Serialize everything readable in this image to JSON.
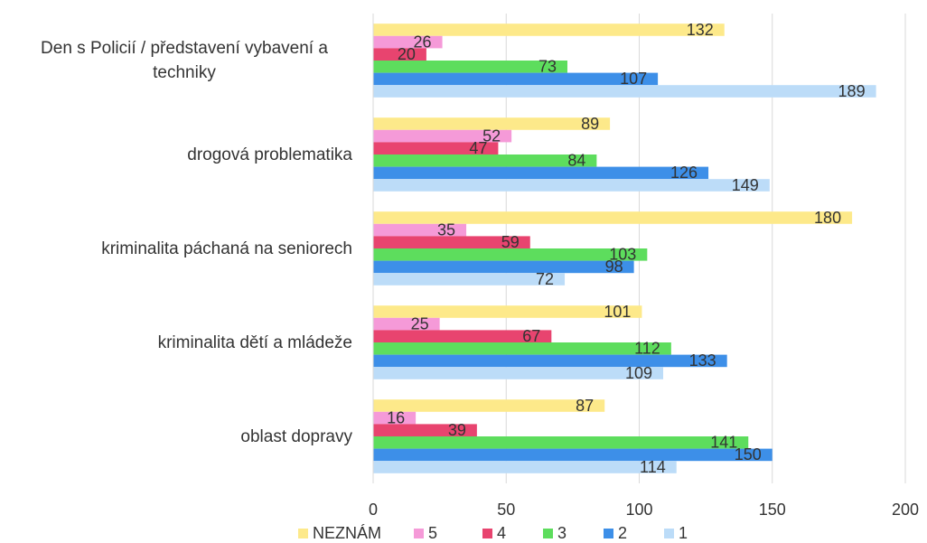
{
  "chart_data": {
    "type": "hbar",
    "categories": [
      "Den s Policií / představení vybavení a techniky",
      "drogová problematika",
      "kriminalita páchaná na seniorech",
      "kriminalita dětí a mládeže",
      "oblast dopravy"
    ],
    "series": [
      {
        "name": "NEZNÁM",
        "color": "#fde98a",
        "values": [
          132,
          89,
          180,
          101,
          87
        ]
      },
      {
        "name": "5",
        "color": "#f59ad8",
        "values": [
          26,
          52,
          35,
          25,
          16
        ]
      },
      {
        "name": "4",
        "color": "#e8446f",
        "values": [
          20,
          47,
          59,
          67,
          39
        ]
      },
      {
        "name": "3",
        "color": "#5ddd5d",
        "values": [
          73,
          84,
          103,
          112,
          141
        ]
      },
      {
        "name": "2",
        "color": "#3d8fe8",
        "values": [
          107,
          126,
          98,
          133,
          150
        ]
      },
      {
        "name": "1",
        "color": "#bcdcf8",
        "values": [
          189,
          149,
          72,
          109,
          114
        ]
      }
    ],
    "xlim": [
      0,
      200
    ],
    "xticks": [
      0,
      50,
      100,
      150,
      200
    ],
    "grid": true,
    "legend": "bottom"
  }
}
